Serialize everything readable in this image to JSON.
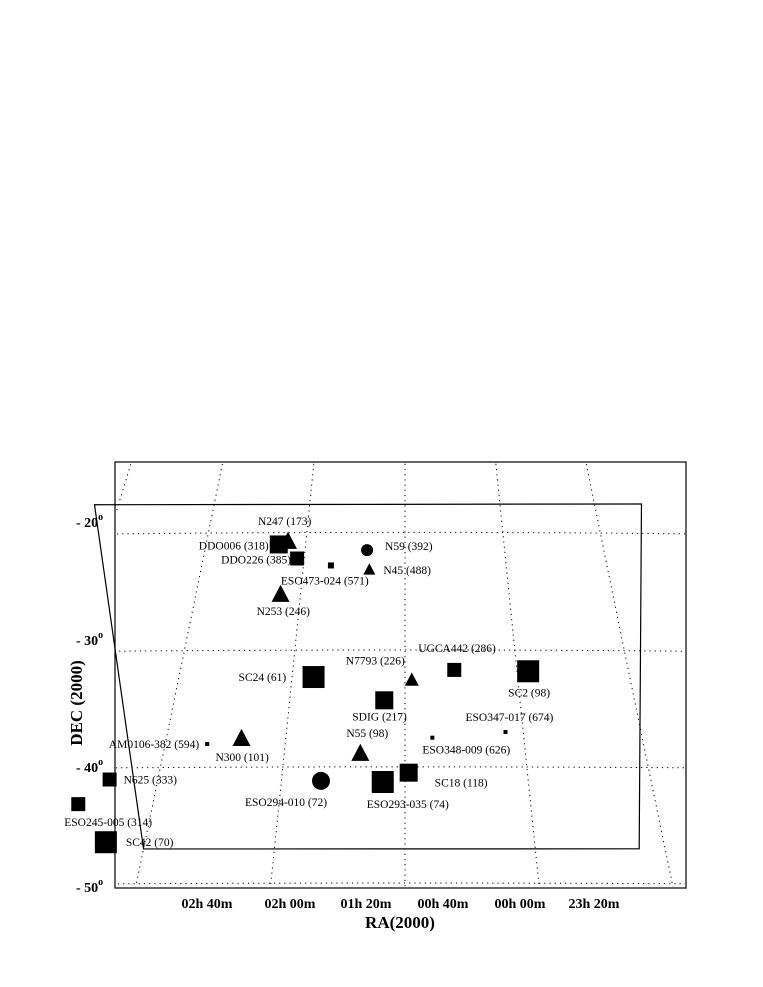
{
  "chart_data": {
    "type": "scatter",
    "title": "",
    "xlabel": "RA(2000)",
    "ylabel": "DEC (2000)",
    "x_ticks": [
      "02h 40m",
      "02h 00m",
      "01h 20m",
      "00h 40m",
      "00h 00m",
      "23h 20m"
    ],
    "y_ticks": [
      {
        "label": "- 20",
        "sup": "o"
      },
      {
        "label": "- 30",
        "sup": "o"
      },
      {
        "label": "- 40",
        "sup": "o"
      },
      {
        "label": "- 50",
        "sup": "o"
      }
    ],
    "grid": true,
    "survey_region": [
      [
        32.5,
        -17.5
      ],
      [
        20.0,
        -47.0
      ],
      [
        -18.0,
        -47.0
      ],
      [
        -25.0,
        -17.5
      ]
    ],
    "points": [
      {
        "label": "N247 (173)",
        "ra": 11.8,
        "dec": -20.8,
        "shape": "triangle",
        "size": "large"
      },
      {
        "label": "DDO006 (318)",
        "ra": 12.7,
        "dec": -21.0,
        "shape": "square",
        "size": "large"
      },
      {
        "label": "DDO226 (385)",
        "ra": 10.7,
        "dec": -22.2,
        "shape": "square",
        "size": "medium"
      },
      {
        "label": "N59 (392)",
        "ra": 3.8,
        "dec": -21.5,
        "shape": "circle",
        "size": "small"
      },
      {
        "label": "ESO473-024 (571)",
        "ra": 7.3,
        "dec": -22.8,
        "shape": "square",
        "size": "tiny"
      },
      {
        "label": "N45 (488)",
        "ra": 3.5,
        "dec": -23.2,
        "shape": "triangle",
        "size": "small"
      },
      {
        "label": "N253 (246)",
        "ra": 11.9,
        "dec": -25.3,
        "shape": "triangle",
        "size": "large"
      },
      {
        "label": "UGCA442 (286)",
        "ra": -4.4,
        "dec": -31.7,
        "shape": "square",
        "size": "medium"
      },
      {
        "label": "N7793 (226)",
        "ra": -0.6,
        "dec": -32.6,
        "shape": "triangle",
        "size": "medium"
      },
      {
        "label": "SC2 (98)",
        "ra": -11.0,
        "dec": -31.8,
        "shape": "square",
        "size": "xlarge"
      },
      {
        "label": "SC24 (61)",
        "ra": 8.1,
        "dec": -32.3,
        "shape": "square",
        "size": "xlarge"
      },
      {
        "label": "SDIG (217)",
        "ra": 1.8,
        "dec": -34.3,
        "shape": "square",
        "size": "large"
      },
      {
        "label": "ESO347-017 (674)",
        "ra": -8.5,
        "dec": -37.0,
        "shape": "square",
        "size": "dot"
      },
      {
        "label": "ESO348-009 (626)",
        "ra": -2.3,
        "dec": -37.5,
        "shape": "square",
        "size": "dot"
      },
      {
        "label": "AM0106-382 (594)",
        "ra": 16.5,
        "dec": -38.0,
        "shape": "square",
        "size": "dot"
      },
      {
        "label": "N300 (101)",
        "ra": 13.7,
        "dec": -37.6,
        "shape": "triangle",
        "size": "large"
      },
      {
        "label": "N55 (98)",
        "ra": 3.7,
        "dec": -38.9,
        "shape": "triangle",
        "size": "large"
      },
      {
        "label": "SC18 (118)",
        "ra": -0.3,
        "dec": -40.5,
        "shape": "square",
        "size": "large"
      },
      {
        "label": "N625 (333)",
        "ra": 23.9,
        "dec": -41.0,
        "shape": "square",
        "size": "medium"
      },
      {
        "label": "ESO294-010 (72)",
        "ra": 6.8,
        "dec": -41.2,
        "shape": "circle",
        "size": "large"
      },
      {
        "label": "ESO293-035 (74)",
        "ra": 1.8,
        "dec": -41.3,
        "shape": "square",
        "size": "xlarge"
      },
      {
        "label": "ESO245-005 (314)",
        "ra": 25.9,
        "dec": -43.1,
        "shape": "square",
        "size": "medium"
      },
      {
        "label": "SC42 (70)",
        "ra": 23.0,
        "dec": -46.4,
        "shape": "square",
        "size": "xlarge"
      }
    ]
  }
}
